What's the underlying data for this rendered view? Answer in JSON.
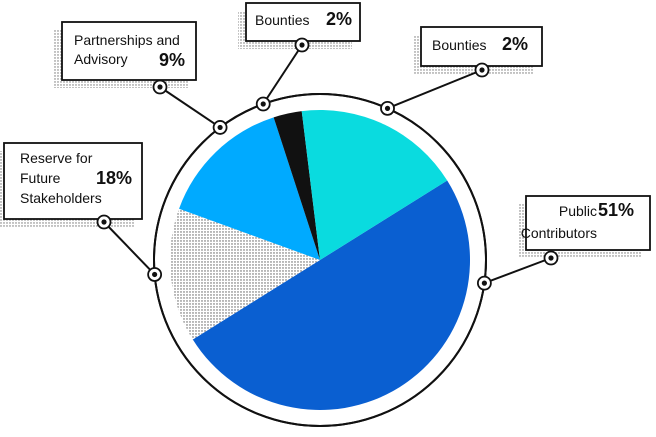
{
  "chart_data": {
    "type": "pie",
    "title": "",
    "slices": [
      {
        "label": "Public Contributors",
        "value": 51,
        "value_label": "51%",
        "color": "#0a5fd1",
        "pattern": "solid"
      },
      {
        "label": "Reserve for Future Stakeholders",
        "value": 18,
        "value_label": "18%",
        "color": "#ffffff",
        "pattern": "dotted"
      },
      {
        "label": "Partnerships and Advisory",
        "value": 9,
        "value_label": "9%",
        "color": "#00aaff",
        "pattern": "solid"
      },
      {
        "label": "Bounties",
        "value": 2,
        "value_label": "2%",
        "color": "#111111",
        "pattern": "solid"
      },
      {
        "label": "Bounties",
        "value": 2,
        "value_label": "2%",
        "color": "#0adbdf",
        "pattern": "solid"
      }
    ],
    "legend": "callouts",
    "grid": false
  },
  "colors": {
    "outline": "#111111",
    "background": "#ffffff"
  }
}
